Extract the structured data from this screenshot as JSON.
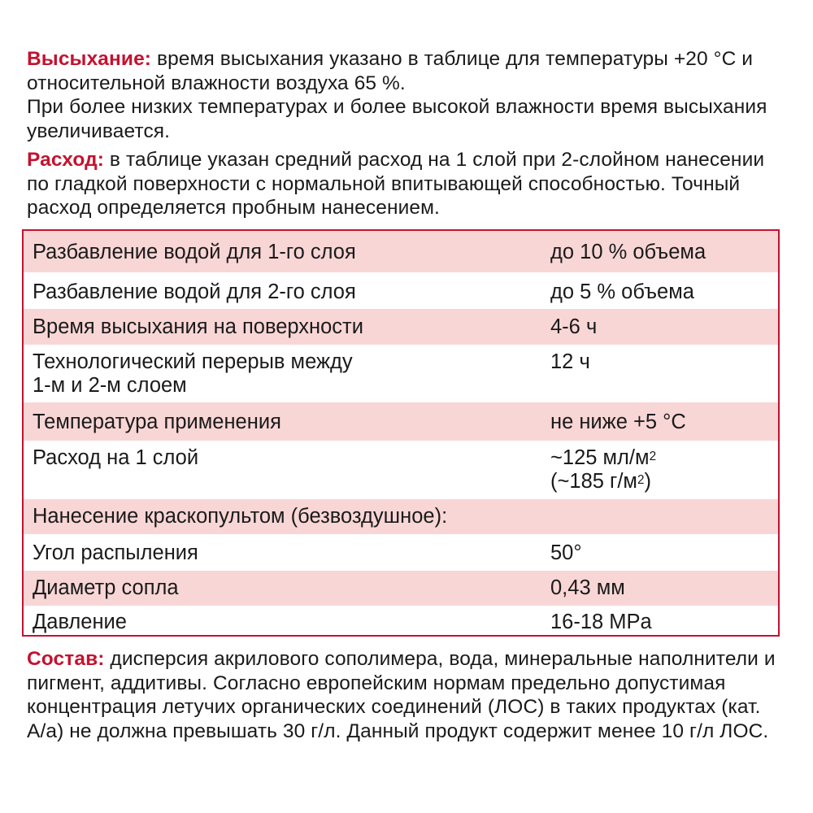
{
  "drying": {
    "label": "Высыхание:",
    "text1": " время высыхания указано в таблице для температуры +20 °C и относительной влажности воздуха 65 %.",
    "text2": "При более низких температурах и более высокой влажности время высыхания увеличивается."
  },
  "consumption": {
    "label": "Расход:",
    "text": " в таблице указан средний расход на 1 слой при 2-слойном нанесении по гладкой поверхности с нормальной впитывающей способностью. Точный расход определяется пробным нанесением."
  },
  "table": {
    "border_color": "#c4122f",
    "stripe_color": "#f9d6d6",
    "rows": [
      {
        "key": "Разбавление водой для 1-го слоя",
        "value": "до 10 % объема"
      },
      {
        "key": "Разбавление водой для 2-го слоя",
        "value": "до 5 % объема"
      },
      {
        "key": "Время высыхания на поверхности",
        "value": "4-6 ч"
      },
      {
        "key": "Технологический перерыв между",
        "key2": "1-м и 2-м слоем",
        "value": "12 ч"
      },
      {
        "key": "Температура применения",
        "value": "не ниже +5 °C"
      },
      {
        "key": "Расход на 1 слой",
        "value": "~125 мл/м",
        "value_sup": "2",
        "value2": "(~185 г/м",
        "value2_sup": "2",
        "value2_end": ")"
      },
      {
        "key": "Нанесение краскопультом (безвоздушное):",
        "value": ""
      },
      {
        "key": "Угол распыления",
        "value": "50°"
      },
      {
        "key": "Диаметр сопла",
        "value": "0,43 мм"
      },
      {
        "key": "Давление",
        "value": "16-18 MPa"
      }
    ]
  },
  "composition": {
    "label": "Состав:",
    "text": " дисперсия акрилового сополимера, вода, минеральные наполнители и пигмент, аддитивы. Согласно европейским нормам предельно допустимая концентрация летучих органических соединений (ЛОС) в таких продуктах (кат. A/a) не должна превышать 30 г/л. Данный продукт содержит менее 10 г/л ЛОС."
  }
}
